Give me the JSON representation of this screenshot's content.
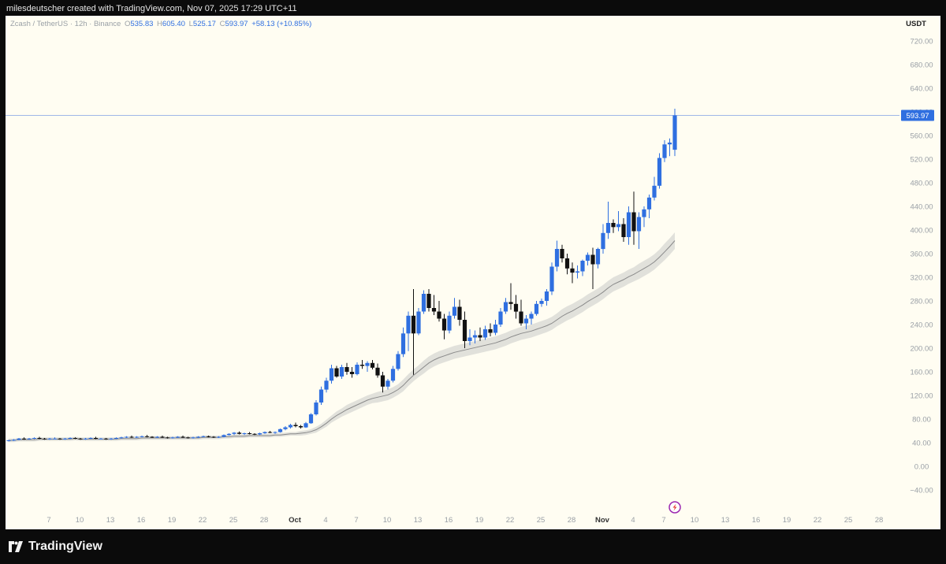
{
  "header": {
    "attribution": "milesdeutscher created with TradingView.com, Nov 07, 2025 17:29 UTC+11"
  },
  "legend": {
    "symbol": "Zcash / TetherUS · 12h · Binance",
    "o_label": "O",
    "o_value": "535.83",
    "h_label": "H",
    "h_value": "605.40",
    "l_label": "L",
    "l_value": "525.17",
    "c_label": "C",
    "c_value": "593.97",
    "change": "+58.13 (+10.85%)"
  },
  "currency": "USDT",
  "footer": {
    "brand": "TradingView"
  },
  "colors": {
    "up": "#2f6fe0",
    "down": "#111111",
    "ema_band": "#d9d9d4",
    "ema_line": "#8a8a8a",
    "price_line": "#9fb7e8",
    "price_tag": "#2f6fe0",
    "background": "#fffdf2"
  },
  "chart_data": {
    "type": "candlestick",
    "y_axis": {
      "ylim": [
        -60,
        750
      ],
      "ticks": [
        720,
        680,
        640,
        600,
        560,
        520,
        480,
        440,
        400,
        360,
        320,
        280,
        240,
        200,
        160,
        120,
        80,
        40,
        0,
        -40
      ],
      "tick_labels": [
        "720.00",
        "680.00",
        "640.00",
        "600.00",
        "560.00",
        "520.00",
        "480.00",
        "440.00",
        "400.00",
        "360.00",
        "320.00",
        "280.00",
        "240.00",
        "200.00",
        "160.00",
        "120.00",
        "80.00",
        "40.00",
        "0.00",
        "−40.00"
      ],
      "current_price": 593.97,
      "current_price_label": "593.97"
    },
    "x_axis": {
      "labels": [
        "7",
        "10",
        "13",
        "16",
        "19",
        "22",
        "25",
        "28",
        "Oct",
        "4",
        "7",
        "10",
        "13",
        "16",
        "19",
        "22",
        "25",
        "28",
        "Nov",
        "4",
        "7",
        "10",
        "13",
        "16",
        "19",
        "22",
        "25",
        "28"
      ],
      "bold": [
        "Oct",
        "Nov"
      ],
      "first_bar_date": "Sep 03",
      "interval": "12h"
    },
    "candles_ohlc": [
      [
        43,
        45,
        42,
        44
      ],
      [
        44,
        46,
        43,
        45
      ],
      [
        45,
        48,
        44,
        47
      ],
      [
        47,
        49,
        45,
        46
      ],
      [
        46,
        48,
        45,
        47
      ],
      [
        47,
        49,
        46,
        48
      ],
      [
        48,
        50,
        46,
        47
      ],
      [
        47,
        48,
        45,
        46
      ],
      [
        46,
        48,
        45,
        47
      ],
      [
        47,
        49,
        46,
        47
      ],
      [
        47,
        48,
        45,
        46
      ],
      [
        46,
        48,
        45,
        47
      ],
      [
        47,
        49,
        46,
        48
      ],
      [
        48,
        49,
        46,
        47
      ],
      [
        47,
        48,
        45,
        46
      ],
      [
        46,
        48,
        45,
        47
      ],
      [
        47,
        49,
        46,
        48
      ],
      [
        48,
        50,
        46,
        47
      ],
      [
        47,
        48,
        46,
        47
      ],
      [
        47,
        48,
        45,
        46
      ],
      [
        46,
        48,
        45,
        47
      ],
      [
        47,
        49,
        46,
        48
      ],
      [
        48,
        50,
        47,
        49
      ],
      [
        49,
        51,
        48,
        50
      ],
      [
        50,
        52,
        48,
        49
      ],
      [
        49,
        51,
        48,
        50
      ],
      [
        50,
        52,
        49,
        51
      ],
      [
        51,
        53,
        49,
        50
      ],
      [
        50,
        51,
        48,
        49
      ],
      [
        49,
        51,
        48,
        50
      ],
      [
        50,
        52,
        48,
        49
      ],
      [
        49,
        50,
        47,
        48
      ],
      [
        48,
        50,
        47,
        49
      ],
      [
        49,
        51,
        48,
        50
      ],
      [
        50,
        52,
        48,
        49
      ],
      [
        49,
        50,
        47,
        48
      ],
      [
        48,
        50,
        47,
        49
      ],
      [
        49,
        51,
        48,
        50
      ],
      [
        50,
        52,
        49,
        51
      ],
      [
        51,
        52,
        49,
        50
      ],
      [
        50,
        51,
        48,
        49
      ],
      [
        49,
        51,
        48,
        50
      ],
      [
        50,
        54,
        49,
        53
      ],
      [
        53,
        56,
        52,
        55
      ],
      [
        55,
        58,
        53,
        57
      ],
      [
        57,
        59,
        54,
        55
      ],
      [
        55,
        57,
        53,
        56
      ],
      [
        56,
        58,
        54,
        55
      ],
      [
        55,
        56,
        53,
        54
      ],
      [
        54,
        57,
        53,
        56
      ],
      [
        56,
        59,
        55,
        58
      ],
      [
        58,
        60,
        56,
        57
      ],
      [
        57,
        59,
        55,
        58
      ],
      [
        58,
        64,
        57,
        63
      ],
      [
        63,
        68,
        61,
        66
      ],
      [
        66,
        72,
        64,
        70
      ],
      [
        70,
        74,
        66,
        68
      ],
      [
        68,
        70,
        64,
        66
      ],
      [
        66,
        75,
        65,
        73
      ],
      [
        73,
        90,
        72,
        88
      ],
      [
        88,
        112,
        86,
        108
      ],
      [
        108,
        135,
        104,
        130
      ],
      [
        130,
        150,
        125,
        145
      ],
      [
        145,
        172,
        140,
        166
      ],
      [
        166,
        170,
        150,
        152
      ],
      [
        152,
        172,
        148,
        168
      ],
      [
        168,
        175,
        155,
        160
      ],
      [
        160,
        168,
        150,
        156
      ],
      [
        156,
        176,
        154,
        172
      ],
      [
        172,
        180,
        165,
        170
      ],
      [
        170,
        178,
        160,
        175
      ],
      [
        175,
        180,
        164,
        167
      ],
      [
        167,
        174,
        150,
        154
      ],
      [
        154,
        160,
        125,
        135
      ],
      [
        135,
        148,
        130,
        145
      ],
      [
        145,
        170,
        142,
        165
      ],
      [
        165,
        195,
        162,
        190
      ],
      [
        190,
        235,
        185,
        225
      ],
      [
        225,
        262,
        195,
        255
      ],
      [
        255,
        300,
        155,
        225
      ],
      [
        225,
        268,
        222,
        262
      ],
      [
        262,
        298,
        258,
        292
      ],
      [
        292,
        300,
        262,
        268
      ],
      [
        268,
        290,
        256,
        262
      ],
      [
        262,
        280,
        245,
        250
      ],
      [
        250,
        258,
        215,
        230
      ],
      [
        230,
        262,
        225,
        255
      ],
      [
        255,
        285,
        250,
        270
      ],
      [
        270,
        282,
        238,
        248
      ],
      [
        248,
        262,
        200,
        212
      ],
      [
        212,
        232,
        205,
        218
      ],
      [
        218,
        230,
        208,
        222
      ],
      [
        222,
        235,
        212,
        218
      ],
      [
        218,
        238,
        214,
        232
      ],
      [
        232,
        242,
        220,
        226
      ],
      [
        226,
        248,
        222,
        240
      ],
      [
        240,
        268,
        236,
        262
      ],
      [
        262,
        285,
        258,
        278
      ],
      [
        278,
        310,
        265,
        275
      ],
      [
        275,
        290,
        250,
        262
      ],
      [
        262,
        282,
        238,
        242
      ],
      [
        242,
        256,
        232,
        250
      ],
      [
        250,
        262,
        240,
        258
      ],
      [
        258,
        280,
        255,
        275
      ],
      [
        275,
        284,
        270,
        280
      ],
      [
        280,
        300,
        272,
        296
      ],
      [
        296,
        345,
        290,
        338
      ],
      [
        338,
        382,
        330,
        368
      ],
      [
        368,
        375,
        345,
        352
      ],
      [
        352,
        360,
        325,
        335
      ],
      [
        335,
        345,
        310,
        328
      ],
      [
        328,
        340,
        318,
        330
      ],
      [
        330,
        350,
        322,
        348
      ],
      [
        348,
        362,
        340,
        358
      ],
      [
        358,
        370,
        300,
        342
      ],
      [
        342,
        370,
        335,
        368
      ],
      [
        368,
        410,
        360,
        395
      ],
      [
        395,
        448,
        385,
        412
      ],
      [
        412,
        418,
        395,
        405
      ],
      [
        405,
        432,
        398,
        410
      ],
      [
        410,
        420,
        380,
        388
      ],
      [
        388,
        440,
        375,
        430
      ],
      [
        430,
        465,
        375,
        398
      ],
      [
        398,
        430,
        368,
        422
      ],
      [
        422,
        440,
        405,
        435
      ],
      [
        435,
        460,
        420,
        455
      ],
      [
        455,
        490,
        450,
        475
      ],
      [
        475,
        530,
        470,
        522
      ],
      [
        522,
        552,
        515,
        545
      ],
      [
        545,
        555,
        525,
        548
      ],
      [
        535.83,
        605.4,
        525.17,
        593.97
      ]
    ],
    "ema": [
      44,
      44,
      45,
      45,
      45,
      45,
      46,
      46,
      46,
      46,
      46,
      46,
      46,
      47,
      46,
      46,
      46,
      46,
      46,
      46,
      46,
      46,
      47,
      47,
      47,
      47,
      48,
      48,
      48,
      48,
      48,
      48,
      48,
      48,
      48,
      48,
      48,
      48,
      49,
      49,
      49,
      49,
      50,
      50,
      51,
      51,
      51,
      52,
      52,
      52,
      52,
      52,
      53,
      53,
      54,
      55,
      55,
      56,
      57,
      59,
      62,
      67,
      73,
      80,
      86,
      91,
      96,
      100,
      104,
      108,
      112,
      115,
      117,
      119,
      121,
      125,
      130,
      137,
      146,
      154,
      161,
      168,
      175,
      180,
      184,
      187,
      190,
      193,
      195,
      197,
      199,
      201,
      203,
      205,
      207,
      209,
      212,
      215,
      219,
      222,
      225,
      227,
      229,
      232,
      235,
      238,
      242,
      248,
      254,
      259,
      263,
      268,
      273,
      279,
      284,
      289,
      295,
      302,
      308,
      312,
      316,
      321,
      325,
      330,
      335,
      340,
      346,
      354,
      363,
      372,
      382
    ],
    "ema_band_halfwidth": [
      3,
      3,
      3,
      3,
      3,
      3,
      3,
      3,
      3,
      3,
      3,
      3,
      3,
      3,
      3,
      3,
      3,
      3,
      3,
      3,
      3,
      3,
      3,
      3,
      3,
      3,
      3,
      3,
      3,
      3,
      3,
      3,
      3,
      3,
      3,
      3,
      3,
      3,
      3,
      3,
      3,
      3,
      3,
      3,
      3,
      3,
      3,
      3,
      3,
      3,
      3,
      3,
      3,
      3,
      3,
      3,
      3,
      4,
      4,
      4,
      5,
      5,
      6,
      6,
      7,
      7,
      8,
      8,
      8,
      8,
      8,
      8,
      9,
      9,
      9,
      9,
      9,
      10,
      10,
      10,
      10,
      11,
      11,
      11,
      11,
      11,
      11,
      11,
      11,
      11,
      11,
      11,
      11,
      11,
      11,
      11,
      11,
      11,
      11,
      11,
      11,
      11,
      11,
      11,
      11,
      11,
      11,
      11,
      12,
      12,
      12,
      12,
      12,
      12,
      12,
      12,
      12,
      12,
      12,
      12,
      12,
      12,
      12,
      13,
      13,
      13,
      13,
      13,
      14,
      14,
      14
    ]
  }
}
